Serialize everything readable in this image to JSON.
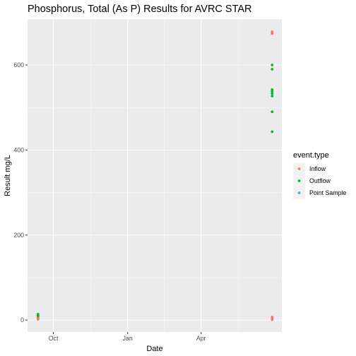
{
  "chart_data": {
    "type": "scatter",
    "title": "Phosphorus, Total (As P) Results for AVRC STAR",
    "xlabel": "Date",
    "ylabel": "Result mg/L",
    "x_axis_type": "date",
    "xlim": [
      "2019-08-30",
      "2020-07-10"
    ],
    "ylim": [
      -28,
      708
    ],
    "x_ticks": [
      {
        "value": "2019-10-01",
        "label": "Oct"
      },
      {
        "value": "2020-01-01",
        "label": "Jan"
      },
      {
        "value": "2020-04-01",
        "label": "Apr"
      }
    ],
    "y_ticks": [
      {
        "value": 0,
        "label": "0"
      },
      {
        "value": 200,
        "label": "200"
      },
      {
        "value": 400,
        "label": "400"
      },
      {
        "value": 600,
        "label": "600"
      }
    ],
    "grid": true,
    "legend": {
      "title": "event.type",
      "position": "right"
    },
    "series": [
      {
        "name": "Inflow",
        "color": "#F8766D",
        "points": [
          {
            "x": "2019-09-12",
            "y": 2
          },
          {
            "x": "2019-09-12",
            "y": 5
          },
          {
            "x": "2019-09-12",
            "y": 8
          },
          {
            "x": "2020-06-28",
            "y": 1
          },
          {
            "x": "2020-06-28",
            "y": 4
          },
          {
            "x": "2020-06-28",
            "y": 7
          },
          {
            "x": "2020-06-28",
            "y": 674
          },
          {
            "x": "2020-06-28",
            "y": 678
          }
        ]
      },
      {
        "name": "Outflow",
        "color": "#00BA38",
        "points": [
          {
            "x": "2019-09-12",
            "y": 10
          },
          {
            "x": "2019-09-12",
            "y": 14
          },
          {
            "x": "2020-06-28",
            "y": 443
          },
          {
            "x": "2020-06-28",
            "y": 490
          },
          {
            "x": "2020-06-28",
            "y": 527
          },
          {
            "x": "2020-06-28",
            "y": 533
          },
          {
            "x": "2020-06-28",
            "y": 538
          },
          {
            "x": "2020-06-28",
            "y": 542
          },
          {
            "x": "2020-06-28",
            "y": 590
          },
          {
            "x": "2020-06-28",
            "y": 600
          }
        ]
      },
      {
        "name": "Point Sample",
        "color": "#619CFF",
        "points": []
      }
    ]
  }
}
